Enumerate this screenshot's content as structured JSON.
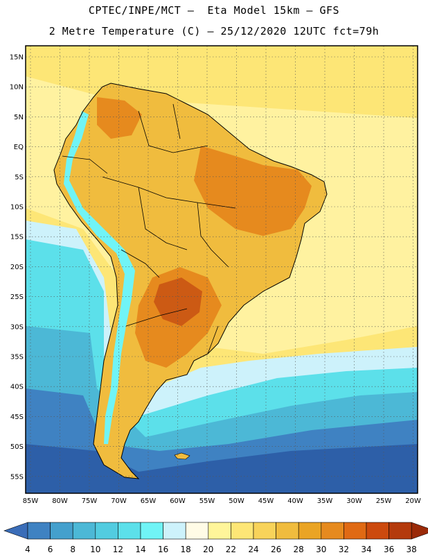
{
  "title_line1": "CPTEC/INPE/MCT –  Eta Model 15km – GFS",
  "title_line2": "2 Metre Temperature (C) – 25/12/2020 12UTC fct=79h",
  "lat_labels": [
    "15N",
    "10N",
    "5N",
    "EQ",
    "5S",
    "10S",
    "15S",
    "20S",
    "25S",
    "30S",
    "35S",
    "40S",
    "45S",
    "50S",
    "55S"
  ],
  "lon_labels": [
    "85W",
    "80W",
    "75W",
    "70W",
    "65W",
    "60W",
    "55W",
    "50W",
    "45W",
    "40W",
    "35W",
    "30W",
    "25W",
    "20W"
  ],
  "colorbar": {
    "labels": [
      "4",
      "6",
      "8",
      "10",
      "12",
      "14",
      "16",
      "18",
      "20",
      "22",
      "24",
      "26",
      "28",
      "30",
      "32",
      "34",
      "36",
      "38"
    ],
    "colors": [
      "#3a6db8",
      "#3f82c2",
      "#44a0cd",
      "#4cb8d6",
      "#52cce0",
      "#5ce0ea",
      "#70f4f6",
      "#cdf2fb",
      "#fffbe6",
      "#fff59a",
      "#fde676",
      "#f8d35a",
      "#f0bc3e",
      "#eaa424",
      "#e68a1e",
      "#e06a14",
      "#cc4a0e",
      "#b43a0c",
      "#9a2a08"
    ]
  },
  "map_colors": {
    "ocean_warm": "#fde676",
    "ocean_mid": "#fff2a0",
    "ocean_cool1": "#cdf2fb",
    "ocean_cool2": "#5ce0ea",
    "ocean_cool3": "#4cb8d6",
    "ocean_cold": "#3f82c2",
    "ocean_coldest": "#2d5fa8",
    "land_warm": "#f0bc3e",
    "land_hot": "#e68a1e",
    "land_hottest": "#cc5a14",
    "andes": "#70f4f6",
    "grid": "#555555",
    "border": "#000000"
  }
}
